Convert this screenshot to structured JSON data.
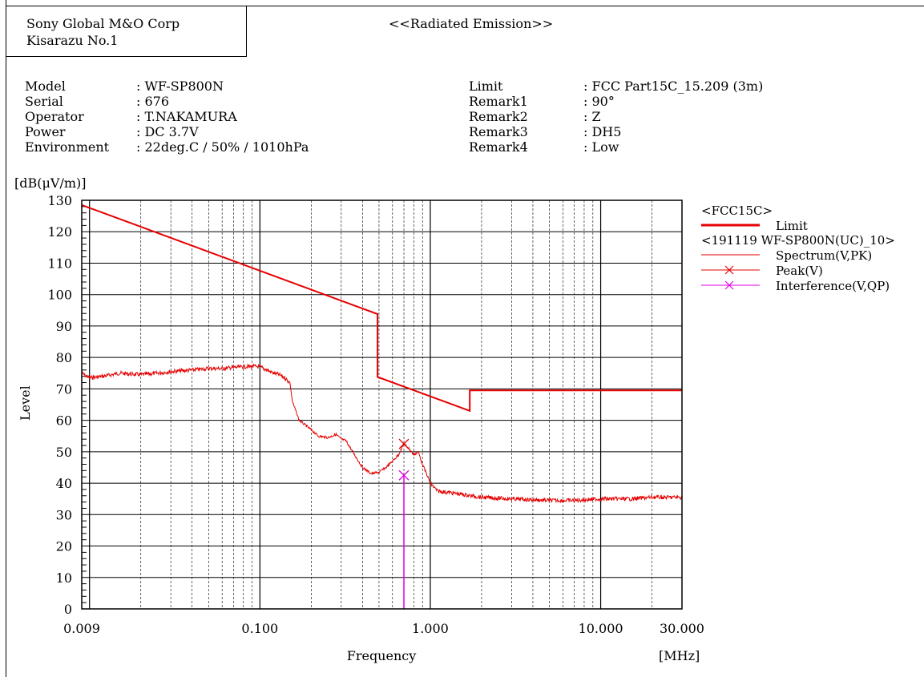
{
  "header": {
    "company_line1": "Sony Global M&O Corp",
    "company_line2": "Kisarazu No.1",
    "report_title": "<<Radiated Emission>>"
  },
  "info_left": [
    {
      "key": "Model",
      "value": ": WF-SP800N"
    },
    {
      "key": "Serial",
      "value": ": 676"
    },
    {
      "key": "Operator",
      "value": ": T.NAKAMURA"
    },
    {
      "key": "Power",
      "value": ": DC 3.7V"
    },
    {
      "key": "Environment",
      "value": ": 22deg.C / 50% / 1010hPa"
    }
  ],
  "info_right": [
    {
      "key": "Limit",
      "value": ": FCC Part15C_15.209 (3m)"
    },
    {
      "key": "Remark1",
      "value": ": 90°"
    },
    {
      "key": "Remark2",
      "value": ": Z"
    },
    {
      "key": "Remark3",
      "value": ": DH5"
    },
    {
      "key": "Remark4",
      "value": ": Low"
    }
  ],
  "legend": {
    "group1": "<FCC15C>",
    "group2": "<191119 WF-SP800N(UC)_10>",
    "items": [
      {
        "label": "Limit",
        "color": "#e60000",
        "style": "thick-line"
      },
      {
        "label": "Spectrum(V,PK)",
        "color": "#e60000",
        "style": "thin-line"
      },
      {
        "label": "Peak(V)",
        "color": "#e60000",
        "style": "x-marker"
      },
      {
        "label": "Interference(V,QP)",
        "color": "#e000e0",
        "style": "x-marker"
      }
    ]
  },
  "colors": {
    "limit": "#e60000",
    "spectrum": "#e60000",
    "peak": "#e60000",
    "interference": "#e000e0",
    "grid": "#000000"
  },
  "chart_data": {
    "type": "line",
    "ylabel": "Level",
    "yunit": "[dB(μV/m)]",
    "xlabel": "Frequency",
    "xunit": "[MHz]",
    "x_scale": "log",
    "xlim": [
      0.009,
      30
    ],
    "ylim": [
      0,
      130
    ],
    "y_ticks": [
      0,
      10,
      20,
      30,
      40,
      50,
      60,
      70,
      80,
      90,
      100,
      110,
      120,
      130
    ],
    "x_tick_labels": [
      {
        "value": 0.009,
        "label": "0.009"
      },
      {
        "value": 0.1,
        "label": "0.100"
      },
      {
        "value": 1,
        "label": "1.000"
      },
      {
        "value": 10,
        "label": "10.000"
      },
      {
        "value": 30,
        "label": "30.000"
      }
    ],
    "grid": true,
    "series": [
      {
        "name": "Limit",
        "color": "#e60000",
        "x": [
          0.009,
          0.49,
          0.49,
          1.705,
          1.705,
          30
        ],
        "y": [
          128.5,
          93.8,
          73.8,
          63.0,
          69.5,
          69.5
        ]
      },
      {
        "name": "Spectrum(V,PK)",
        "color": "#e60000",
        "x": [
          0.009,
          0.01,
          0.012,
          0.015,
          0.02,
          0.025,
          0.03,
          0.04,
          0.05,
          0.06,
          0.07,
          0.08,
          0.09,
          0.1,
          0.11,
          0.12,
          0.13,
          0.14,
          0.15,
          0.155,
          0.17,
          0.2,
          0.22,
          0.25,
          0.28,
          0.3,
          0.32,
          0.35,
          0.4,
          0.45,
          0.5,
          0.55,
          0.6,
          0.65,
          0.7,
          0.75,
          0.8,
          0.85,
          0.9,
          0.95,
          1.0,
          1.1,
          1.3,
          1.5,
          2,
          3,
          5,
          7,
          10,
          15,
          20,
          25,
          30
        ],
        "y": [
          75,
          73.5,
          74,
          75,
          74.5,
          75,
          75.5,
          76,
          76.5,
          76.5,
          76.8,
          77,
          77.2,
          77,
          76,
          75,
          74.5,
          73.5,
          72,
          66,
          60,
          57,
          55,
          54.5,
          55.5,
          54,
          53.5,
          50,
          45,
          43,
          43.5,
          45,
          47,
          49,
          52.5,
          51,
          49,
          50,
          46,
          43,
          40,
          37.5,
          37,
          36.5,
          35.5,
          35,
          34.5,
          34.5,
          35,
          35,
          35.5,
          35.5,
          35.5
        ]
      },
      {
        "name": "Peak(V)",
        "color": "#e60000",
        "x": [
          0.7
        ],
        "y": [
          52.5
        ]
      },
      {
        "name": "Interference(V,QP)",
        "color": "#e000e0",
        "x": [
          0.7
        ],
        "y": [
          42.5
        ]
      }
    ]
  }
}
